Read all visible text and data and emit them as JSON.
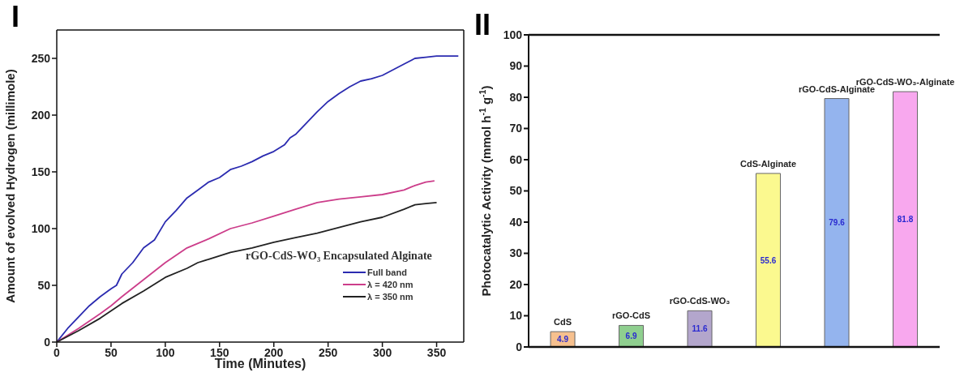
{
  "chart_data": [
    {
      "type": "line",
      "title": "I",
      "xlabel": "Time (Minutes)",
      "ylabel": "Amount of evolved Hydrogen (millimole)",
      "legend_title": "rGO-CdS-WO₃ Encapsulated Alginate",
      "legend": "bottom right",
      "xlim": [
        0,
        375
      ],
      "xticks": [
        0,
        50,
        100,
        150,
        200,
        250,
        300,
        350
      ],
      "ylim": [
        0,
        275
      ],
      "yticks": [
        0,
        50,
        100,
        150,
        200,
        250
      ],
      "marker": "none",
      "line_style": "solid",
      "series": [
        {
          "name": "Full band",
          "color": "#2b2bb0",
          "x": [
            0,
            10,
            20,
            30,
            40,
            50,
            55,
            60,
            70,
            80,
            90,
            100,
            110,
            120,
            130,
            140,
            150,
            160,
            170,
            180,
            190,
            200,
            210,
            215,
            220,
            230,
            240,
            250,
            260,
            270,
            280,
            290,
            300,
            310,
            320,
            330,
            340,
            350,
            370
          ],
          "values": [
            0,
            12,
            22,
            32,
            40,
            47,
            50,
            60,
            70,
            83,
            90,
            106,
            116,
            127,
            134,
            141,
            145,
            152,
            155,
            159,
            164,
            168,
            174,
            180,
            183,
            193,
            203,
            212,
            219,
            225,
            230,
            232,
            235,
            240,
            245,
            250,
            251,
            252,
            252
          ]
        },
        {
          "name": "λ = 420 nm",
          "color": "#cc3d8a",
          "x": [
            0,
            20,
            40,
            50,
            60,
            80,
            100,
            120,
            140,
            160,
            180,
            200,
            220,
            240,
            260,
            280,
            300,
            320,
            330,
            340,
            348
          ],
          "values": [
            0,
            12,
            25,
            32,
            40,
            55,
            70,
            83,
            91,
            100,
            105,
            111,
            117,
            123,
            126,
            128,
            130,
            134,
            138,
            141,
            142
          ]
        },
        {
          "name": "λ = 350 nm",
          "color": "#222222",
          "x": [
            0,
            20,
            40,
            60,
            80,
            100,
            120,
            130,
            140,
            160,
            180,
            200,
            220,
            240,
            260,
            280,
            300,
            320,
            330,
            340,
            350
          ],
          "values": [
            0,
            10,
            21,
            34,
            45,
            57,
            65,
            70,
            73,
            79,
            83,
            88,
            92,
            96,
            101,
            106,
            110,
            117,
            121,
            122,
            123
          ]
        }
      ]
    },
    {
      "type": "bar",
      "title": "II",
      "ylabel": "Photocatalytic Activity (mmol h$^{-1}$ g$^{-1}$)",
      "categories": [
        "CdS",
        "rGO-CdS",
        "rGO-CdS-WO₃",
        "CdS-Alginate",
        "rGO-CdS-Alginate",
        "rGO-CdS-WO₃-Alginate"
      ],
      "values": [
        4.9,
        6.9,
        11.6,
        55.6,
        79.6,
        81.8
      ],
      "colors": [
        "#f6c08e",
        "#8fcf8f",
        "#b3a6cc",
        "#fbf98f",
        "#94b4ee",
        "#f8a8ee"
      ],
      "ylim": [
        0,
        100
      ],
      "yticks": [
        0,
        10,
        20,
        30,
        40,
        50,
        60,
        70,
        80,
        90,
        100
      ],
      "data_labels": true
    }
  ]
}
